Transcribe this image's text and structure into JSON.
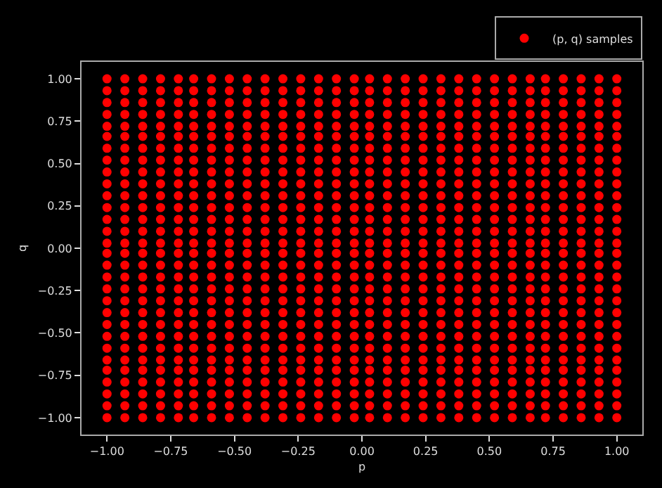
{
  "chart_data": {
    "type": "scatter",
    "xlabel": "p",
    "ylabel": "q",
    "xlim": [
      -1.1,
      1.1
    ],
    "ylim": [
      -1.1,
      1.1
    ],
    "xticks": [
      {
        "value": -1,
        "label": "−1.00"
      },
      {
        "value": -0.75,
        "label": "−0.75"
      },
      {
        "value": -0.5,
        "label": "−0.50"
      },
      {
        "value": -0.25,
        "label": "−0.25"
      },
      {
        "value": 0,
        "label": "0.00"
      },
      {
        "value": 0.25,
        "label": "0.25"
      },
      {
        "value": 0.5,
        "label": "0.50"
      },
      {
        "value": 0.75,
        "label": "0.75"
      },
      {
        "value": 1,
        "label": "1.00"
      }
    ],
    "yticks": [
      {
        "value": -1,
        "label": "−1.00"
      },
      {
        "value": -0.75,
        "label": "−0.75"
      },
      {
        "value": -0.5,
        "label": "−0.50"
      },
      {
        "value": -0.25,
        "label": "−0.25"
      },
      {
        "value": 0,
        "label": "0.00"
      },
      {
        "value": 0.25,
        "label": "0.25"
      },
      {
        "value": 0.5,
        "label": "0.50"
      },
      {
        "value": 0.75,
        "label": "0.75"
      },
      {
        "value": 1,
        "label": "1.00"
      }
    ],
    "grid": false,
    "legend": "top right",
    "marker": "circle",
    "series": [
      {
        "name": "(p, q) samples",
        "color": "#ff0000",
        "x": [
          -1,
          -1,
          -1,
          -1,
          -1,
          -1,
          -1,
          -1,
          -1,
          -1,
          -1,
          -1,
          -1,
          -1,
          -1,
          -1,
          -1,
          -1,
          -1,
          -1,
          -1,
          -1,
          -1,
          -1,
          -1,
          -1,
          -1,
          -1,
          -1,
          -1,
          -0.93,
          -0.93,
          -0.93,
          -0.93,
          -0.93,
          -0.93,
          -0.93,
          -0.93,
          -0.93,
          -0.93,
          -0.93,
          -0.93,
          -0.93,
          -0.93,
          -0.93,
          -0.93,
          -0.93,
          -0.93,
          -0.93,
          -0.93,
          -0.93,
          -0.93,
          -0.93,
          -0.93,
          -0.93,
          -0.93,
          -0.93,
          -0.93,
          -0.93,
          -0.93,
          -0.86,
          -0.86,
          -0.86,
          -0.86,
          -0.86,
          -0.86,
          -0.86,
          -0.86,
          -0.86,
          -0.86,
          -0.86,
          -0.86,
          -0.86,
          -0.86,
          -0.86,
          -0.86,
          -0.86,
          -0.86,
          -0.86,
          -0.86,
          -0.86,
          -0.86,
          -0.86,
          -0.86,
          -0.86,
          -0.86,
          -0.86,
          -0.86,
          -0.86,
          -0.86,
          -0.79,
          -0.79,
          -0.79,
          -0.79,
          -0.79,
          -0.79,
          -0.79,
          -0.79,
          -0.79,
          -0.79,
          -0.79,
          -0.79,
          -0.79,
          -0.79,
          -0.79,
          -0.79,
          -0.79,
          -0.79,
          -0.79,
          -0.79,
          -0.79,
          -0.79,
          -0.79,
          -0.79,
          -0.79,
          -0.79,
          -0.79,
          -0.79,
          -0.79,
          -0.79,
          -0.72,
          -0.72,
          -0.72,
          -0.72,
          -0.72,
          -0.72,
          -0.72,
          -0.72,
          -0.72,
          -0.72,
          -0.72,
          -0.72,
          -0.72,
          -0.72,
          -0.72,
          -0.72,
          -0.72,
          -0.72,
          -0.72,
          -0.72,
          -0.72,
          -0.72,
          -0.72,
          -0.72,
          -0.72,
          -0.72,
          -0.72,
          -0.72,
          -0.72,
          -0.72,
          -0.66,
          -0.66,
          -0.66,
          -0.66,
          -0.66,
          -0.66,
          -0.66,
          -0.66,
          -0.66,
          -0.66,
          -0.66,
          -0.66,
          -0.66,
          -0.66,
          -0.66,
          -0.66,
          -0.66,
          -0.66,
          -0.66,
          -0.66,
          -0.66,
          -0.66,
          -0.66,
          -0.66,
          -0.66,
          -0.66,
          -0.66,
          -0.66,
          -0.66,
          -0.66,
          -0.59,
          -0.59,
          -0.59,
          -0.59,
          -0.59,
          -0.59,
          -0.59,
          -0.59,
          -0.59,
          -0.59,
          -0.59,
          -0.59,
          -0.59,
          -0.59,
          -0.59,
          -0.59,
          -0.59,
          -0.59,
          -0.59,
          -0.59,
          -0.59,
          -0.59,
          -0.59,
          -0.59,
          -0.59,
          -0.59,
          -0.59,
          -0.59,
          -0.59,
          -0.59,
          -0.52,
          -0.52,
          -0.52,
          -0.52,
          -0.52,
          -0.52,
          -0.52,
          -0.52,
          -0.52,
          -0.52,
          -0.52,
          -0.52,
          -0.52,
          -0.52,
          -0.52,
          -0.52,
          -0.52,
          -0.52,
          -0.52,
          -0.52,
          -0.52,
          -0.52,
          -0.52,
          -0.52,
          -0.52,
          -0.52,
          -0.52,
          -0.52,
          -0.52,
          -0.52,
          -0.45,
          -0.45,
          -0.45,
          -0.45,
          -0.45,
          -0.45,
          -0.45,
          -0.45,
          -0.45,
          -0.45,
          -0.45,
          -0.45,
          -0.45,
          -0.45,
          -0.45,
          -0.45,
          -0.45,
          -0.45,
          -0.45,
          -0.45,
          -0.45,
          -0.45,
          -0.45,
          -0.45,
          -0.45,
          -0.45,
          -0.45,
          -0.45,
          -0.45,
          -0.45,
          -0.38,
          -0.38,
          -0.38,
          -0.38,
          -0.38,
          -0.38,
          -0.38,
          -0.38,
          -0.38,
          -0.38,
          -0.38,
          -0.38,
          -0.38,
          -0.38,
          -0.38,
          -0.38,
          -0.38,
          -0.38,
          -0.38,
          -0.38,
          -0.38,
          -0.38,
          -0.38,
          -0.38,
          -0.38,
          -0.38,
          -0.38,
          -0.38,
          -0.38,
          -0.38,
          -0.31,
          -0.31,
          -0.31,
          -0.31,
          -0.31,
          -0.31,
          -0.31,
          -0.31,
          -0.31,
          -0.31,
          -0.31,
          -0.31,
          -0.31,
          -0.31,
          -0.31,
          -0.31,
          -0.31,
          -0.31,
          -0.31,
          -0.31,
          -0.31,
          -0.31,
          -0.31,
          -0.31,
          -0.31,
          -0.31,
          -0.31,
          -0.31,
          -0.31,
          -0.31,
          -0.24,
          -0.24,
          -0.24,
          -0.24,
          -0.24,
          -0.24,
          -0.24,
          -0.24,
          -0.24,
          -0.24,
          -0.24,
          -0.24,
          -0.24,
          -0.24,
          -0.24,
          -0.24,
          -0.24,
          -0.24,
          -0.24,
          -0.24,
          -0.24,
          -0.24,
          -0.24,
          -0.24,
          -0.24,
          -0.24,
          -0.24,
          -0.24,
          -0.24,
          -0.24,
          -0.17,
          -0.17,
          -0.17,
          -0.17,
          -0.17,
          -0.17,
          -0.17,
          -0.17,
          -0.17,
          -0.17,
          -0.17,
          -0.17,
          -0.17,
          -0.17,
          -0.17,
          -0.17,
          -0.17,
          -0.17,
          -0.17,
          -0.17,
          -0.17,
          -0.17,
          -0.17,
          -0.17,
          -0.17,
          -0.17,
          -0.17,
          -0.17,
          -0.17,
          -0.17,
          -0.1,
          -0.1,
          -0.1,
          -0.1,
          -0.1,
          -0.1,
          -0.1,
          -0.1,
          -0.1,
          -0.1,
          -0.1,
          -0.1,
          -0.1,
          -0.1,
          -0.1,
          -0.1,
          -0.1,
          -0.1,
          -0.1,
          -0.1,
          -0.1,
          -0.1,
          -0.1,
          -0.1,
          -0.1,
          -0.1,
          -0.1,
          -0.1,
          -0.1,
          -0.1,
          -0.03,
          -0.03,
          -0.03,
          -0.03,
          -0.03,
          -0.03,
          -0.03,
          -0.03,
          -0.03,
          -0.03,
          -0.03,
          -0.03,
          -0.03,
          -0.03,
          -0.03,
          -0.03,
          -0.03,
          -0.03,
          -0.03,
          -0.03,
          -0.03,
          -0.03,
          -0.03,
          -0.03,
          -0.03,
          -0.03,
          -0.03,
          -0.03,
          -0.03,
          -0.03,
          0.03,
          0.03,
          0.03,
          0.03,
          0.03,
          0.03,
          0.03,
          0.03,
          0.03,
          0.03,
          0.03,
          0.03,
          0.03,
          0.03,
          0.03,
          0.03,
          0.03,
          0.03,
          0.03,
          0.03,
          0.03,
          0.03,
          0.03,
          0.03,
          0.03,
          0.03,
          0.03,
          0.03,
          0.03,
          0.03,
          0.1,
          0.1,
          0.1,
          0.1,
          0.1,
          0.1,
          0.1,
          0.1,
          0.1,
          0.1,
          0.1,
          0.1,
          0.1,
          0.1,
          0.1,
          0.1,
          0.1,
          0.1,
          0.1,
          0.1,
          0.1,
          0.1,
          0.1,
          0.1,
          0.1,
          0.1,
          0.1,
          0.1,
          0.1,
          0.1,
          0.17,
          0.17,
          0.17,
          0.17,
          0.17,
          0.17,
          0.17,
          0.17,
          0.17,
          0.17,
          0.17,
          0.17,
          0.17,
          0.17,
          0.17,
          0.17,
          0.17,
          0.17,
          0.17,
          0.17,
          0.17,
          0.17,
          0.17,
          0.17,
          0.17,
          0.17,
          0.17,
          0.17,
          0.17,
          0.17,
          0.24,
          0.24,
          0.24,
          0.24,
          0.24,
          0.24,
          0.24,
          0.24,
          0.24,
          0.24,
          0.24,
          0.24,
          0.24,
          0.24,
          0.24,
          0.24,
          0.24,
          0.24,
          0.24,
          0.24,
          0.24,
          0.24,
          0.24,
          0.24,
          0.24,
          0.24,
          0.24,
          0.24,
          0.24,
          0.24,
          0.31,
          0.31,
          0.31,
          0.31,
          0.31,
          0.31,
          0.31,
          0.31,
          0.31,
          0.31,
          0.31,
          0.31,
          0.31,
          0.31,
          0.31,
          0.31,
          0.31,
          0.31,
          0.31,
          0.31,
          0.31,
          0.31,
          0.31,
          0.31,
          0.31,
          0.31,
          0.31,
          0.31,
          0.31,
          0.31,
          0.38,
          0.38,
          0.38,
          0.38,
          0.38,
          0.38,
          0.38,
          0.38,
          0.38,
          0.38,
          0.38,
          0.38,
          0.38,
          0.38,
          0.38,
          0.38,
          0.38,
          0.38,
          0.38,
          0.38,
          0.38,
          0.38,
          0.38,
          0.38,
          0.38,
          0.38,
          0.38,
          0.38,
          0.38,
          0.38,
          0.45,
          0.45,
          0.45,
          0.45,
          0.45,
          0.45,
          0.45,
          0.45,
          0.45,
          0.45,
          0.45,
          0.45,
          0.45,
          0.45,
          0.45,
          0.45,
          0.45,
          0.45,
          0.45,
          0.45,
          0.45,
          0.45,
          0.45,
          0.45,
          0.45,
          0.45,
          0.45,
          0.45,
          0.45,
          0.45,
          0.52,
          0.52,
          0.52,
          0.52,
          0.52,
          0.52,
          0.52,
          0.52,
          0.52,
          0.52,
          0.52,
          0.52,
          0.52,
          0.52,
          0.52,
          0.52,
          0.52,
          0.52,
          0.52,
          0.52,
          0.52,
          0.52,
          0.52,
          0.52,
          0.52,
          0.52,
          0.52,
          0.52,
          0.52,
          0.52,
          0.59,
          0.59,
          0.59,
          0.59,
          0.59,
          0.59,
          0.59,
          0.59,
          0.59,
          0.59,
          0.59,
          0.59,
          0.59,
          0.59,
          0.59,
          0.59,
          0.59,
          0.59,
          0.59,
          0.59,
          0.59,
          0.59,
          0.59,
          0.59,
          0.59,
          0.59,
          0.59,
          0.59,
          0.59,
          0.59,
          0.66,
          0.66,
          0.66,
          0.66,
          0.66,
          0.66,
          0.66,
          0.66,
          0.66,
          0.66,
          0.66,
          0.66,
          0.66,
          0.66,
          0.66,
          0.66,
          0.66,
          0.66,
          0.66,
          0.66,
          0.66,
          0.66,
          0.66,
          0.66,
          0.66,
          0.66,
          0.66,
          0.66,
          0.66,
          0.66,
          0.72,
          0.72,
          0.72,
          0.72,
          0.72,
          0.72,
          0.72,
          0.72,
          0.72,
          0.72,
          0.72,
          0.72,
          0.72,
          0.72,
          0.72,
          0.72,
          0.72,
          0.72,
          0.72,
          0.72,
          0.72,
          0.72,
          0.72,
          0.72,
          0.72,
          0.72,
          0.72,
          0.72,
          0.72,
          0.72,
          0.79,
          0.79,
          0.79,
          0.79,
          0.79,
          0.79,
          0.79,
          0.79,
          0.79,
          0.79,
          0.79,
          0.79,
          0.79,
          0.79,
          0.79,
          0.79,
          0.79,
          0.79,
          0.79,
          0.79,
          0.79,
          0.79,
          0.79,
          0.79,
          0.79,
          0.79,
          0.79,
          0.79,
          0.79,
          0.79,
          0.86,
          0.86,
          0.86,
          0.86,
          0.86,
          0.86,
          0.86,
          0.86,
          0.86,
          0.86,
          0.86,
          0.86,
          0.86,
          0.86,
          0.86,
          0.86,
          0.86,
          0.86,
          0.86,
          0.86,
          0.86,
          0.86,
          0.86,
          0.86,
          0.86,
          0.86,
          0.86,
          0.86,
          0.86,
          0.86,
          0.93,
          0.93,
          0.93,
          0.93,
          0.93,
          0.93,
          0.93,
          0.93,
          0.93,
          0.93,
          0.93,
          0.93,
          0.93,
          0.93,
          0.93,
          0.93,
          0.93,
          0.93,
          0.93,
          0.93,
          0.93,
          0.93,
          0.93,
          0.93,
          0.93,
          0.93,
          0.93,
          0.93,
          0.93,
          0.93,
          1,
          1,
          1,
          1,
          1,
          1,
          1,
          1,
          1,
          1,
          1,
          1,
          1,
          1,
          1,
          1,
          1,
          1,
          1,
          1,
          1,
          1,
          1,
          1,
          1,
          1,
          1,
          1,
          1,
          1
        ],
        "values": [
          -1,
          -0.93,
          -0.86,
          -0.79,
          -0.72,
          -0.66,
          -0.59,
          -0.52,
          -0.45,
          -0.38,
          -0.31,
          -0.24,
          -0.17,
          -0.1,
          -0.03,
          0.03,
          0.1,
          0.17,
          0.24,
          0.31,
          0.38,
          0.45,
          0.52,
          0.59,
          0.66,
          0.72,
          0.79,
          0.86,
          0.93,
          1,
          -1,
          -0.93,
          -0.86,
          -0.79,
          -0.72,
          -0.66,
          -0.59,
          -0.52,
          -0.45,
          -0.38,
          -0.31,
          -0.24,
          -0.17,
          -0.1,
          -0.03,
          0.03,
          0.1,
          0.17,
          0.24,
          0.31,
          0.38,
          0.45,
          0.52,
          0.59,
          0.66,
          0.72,
          0.79,
          0.86,
          0.93,
          1,
          -1,
          -0.93,
          -0.86,
          -0.79,
          -0.72,
          -0.66,
          -0.59,
          -0.52,
          -0.45,
          -0.38,
          -0.31,
          -0.24,
          -0.17,
          -0.1,
          -0.03,
          0.03,
          0.1,
          0.17,
          0.24,
          0.31,
          0.38,
          0.45,
          0.52,
          0.59,
          0.66,
          0.72,
          0.79,
          0.86,
          0.93,
          1,
          -1,
          -0.93,
          -0.86,
          -0.79,
          -0.72,
          -0.66,
          -0.59,
          -0.52,
          -0.45,
          -0.38,
          -0.31,
          -0.24,
          -0.17,
          -0.1,
          -0.03,
          0.03,
          0.1,
          0.17,
          0.24,
          0.31,
          0.38,
          0.45,
          0.52,
          0.59,
          0.66,
          0.72,
          0.79,
          0.86,
          0.93,
          1,
          -1,
          -0.93,
          -0.86,
          -0.79,
          -0.72,
          -0.66,
          -0.59,
          -0.52,
          -0.45,
          -0.38,
          -0.31,
          -0.24,
          -0.17,
          -0.1,
          -0.03,
          0.03,
          0.1,
          0.17,
          0.24,
          0.31,
          0.38,
          0.45,
          0.52,
          0.59,
          0.66,
          0.72,
          0.79,
          0.86,
          0.93,
          1,
          -1,
          -0.93,
          -0.86,
          -0.79,
          -0.72,
          -0.66,
          -0.59,
          -0.52,
          -0.45,
          -0.38,
          -0.31,
          -0.24,
          -0.17,
          -0.1,
          -0.03,
          0.03,
          0.1,
          0.17,
          0.24,
          0.31,
          0.38,
          0.45,
          0.52,
          0.59,
          0.66,
          0.72,
          0.79,
          0.86,
          0.93,
          1,
          -1,
          -0.93,
          -0.86,
          -0.79,
          -0.72,
          -0.66,
          -0.59,
          -0.52,
          -0.45,
          -0.38,
          -0.31,
          -0.24,
          -0.17,
          -0.1,
          -0.03,
          0.03,
          0.1,
          0.17,
          0.24,
          0.31,
          0.38,
          0.45,
          0.52,
          0.59,
          0.66,
          0.72,
          0.79,
          0.86,
          0.93,
          1,
          -1,
          -0.93,
          -0.86,
          -0.79,
          -0.72,
          -0.66,
          -0.59,
          -0.52,
          -0.45,
          -0.38,
          -0.31,
          -0.24,
          -0.17,
          -0.1,
          -0.03,
          0.03,
          0.1,
          0.17,
          0.24,
          0.31,
          0.38,
          0.45,
          0.52,
          0.59,
          0.66,
          0.72,
          0.79,
          0.86,
          0.93,
          1,
          -1,
          -0.93,
          -0.86,
          -0.79,
          -0.72,
          -0.66,
          -0.59,
          -0.52,
          -0.45,
          -0.38,
          -0.31,
          -0.24,
          -0.17,
          -0.1,
          -0.03,
          0.03,
          0.1,
          0.17,
          0.24,
          0.31,
          0.38,
          0.45,
          0.52,
          0.59,
          0.66,
          0.72,
          0.79,
          0.86,
          0.93,
          1,
          -1,
          -0.93,
          -0.86,
          -0.79,
          -0.72,
          -0.66,
          -0.59,
          -0.52,
          -0.45,
          -0.38,
          -0.31,
          -0.24,
          -0.17,
          -0.1,
          -0.03,
          0.03,
          0.1,
          0.17,
          0.24,
          0.31,
          0.38,
          0.45,
          0.52,
          0.59,
          0.66,
          0.72,
          0.79,
          0.86,
          0.93,
          1,
          -1,
          -0.93,
          -0.86,
          -0.79,
          -0.72,
          -0.66,
          -0.59,
          -0.52,
          -0.45,
          -0.38,
          -0.31,
          -0.24,
          -0.17,
          -0.1,
          -0.03,
          0.03,
          0.1,
          0.17,
          0.24,
          0.31,
          0.38,
          0.45,
          0.52,
          0.59,
          0.66,
          0.72,
          0.79,
          0.86,
          0.93,
          1,
          -1,
          -0.93,
          -0.86,
          -0.79,
          -0.72,
          -0.66,
          -0.59,
          -0.52,
          -0.45,
          -0.38,
          -0.31,
          -0.24,
          -0.17,
          -0.1,
          -0.03,
          0.03,
          0.1,
          0.17,
          0.24,
          0.31,
          0.38,
          0.45,
          0.52,
          0.59,
          0.66,
          0.72,
          0.79,
          0.86,
          0.93,
          1,
          -1,
          -0.93,
          -0.86,
          -0.79,
          -0.72,
          -0.66,
          -0.59,
          -0.52,
          -0.45,
          -0.38,
          -0.31,
          -0.24,
          -0.17,
          -0.1,
          -0.03,
          0.03,
          0.1,
          0.17,
          0.24,
          0.31,
          0.38,
          0.45,
          0.52,
          0.59,
          0.66,
          0.72,
          0.79,
          0.86,
          0.93,
          1,
          -1,
          -0.93,
          -0.86,
          -0.79,
          -0.72,
          -0.66,
          -0.59,
          -0.52,
          -0.45,
          -0.38,
          -0.31,
          -0.24,
          -0.17,
          -0.1,
          -0.03,
          0.03,
          0.1,
          0.17,
          0.24,
          0.31,
          0.38,
          0.45,
          0.52,
          0.59,
          0.66,
          0.72,
          0.79,
          0.86,
          0.93,
          1,
          -1,
          -0.93,
          -0.86,
          -0.79,
          -0.72,
          -0.66,
          -0.59,
          -0.52,
          -0.45,
          -0.38,
          -0.31,
          -0.24,
          -0.17,
          -0.1,
          -0.03,
          0.03,
          0.1,
          0.17,
          0.24,
          0.31,
          0.38,
          0.45,
          0.52,
          0.59,
          0.66,
          0.72,
          0.79,
          0.86,
          0.93,
          1,
          -1,
          -0.93,
          -0.86,
          -0.79,
          -0.72,
          -0.66,
          -0.59,
          -0.52,
          -0.45,
          -0.38,
          -0.31,
          -0.24,
          -0.17,
          -0.1,
          -0.03,
          0.03,
          0.1,
          0.17,
          0.24,
          0.31,
          0.38,
          0.45,
          0.52,
          0.59,
          0.66,
          0.72,
          0.79,
          0.86,
          0.93,
          1,
          -1,
          -0.93,
          -0.86,
          -0.79,
          -0.72,
          -0.66,
          -0.59,
          -0.52,
          -0.45,
          -0.38,
          -0.31,
          -0.24,
          -0.17,
          -0.1,
          -0.03,
          0.03,
          0.1,
          0.17,
          0.24,
          0.31,
          0.38,
          0.45,
          0.52,
          0.59,
          0.66,
          0.72,
          0.79,
          0.86,
          0.93,
          1,
          -1,
          -0.93,
          -0.86,
          -0.79,
          -0.72,
          -0.66,
          -0.59,
          -0.52,
          -0.45,
          -0.38,
          -0.31,
          -0.24,
          -0.17,
          -0.1,
          -0.03,
          0.03,
          0.1,
          0.17,
          0.24,
          0.31,
          0.38,
          0.45,
          0.52,
          0.59,
          0.66,
          0.72,
          0.79,
          0.86,
          0.93,
          1,
          -1,
          -0.93,
          -0.86,
          -0.79,
          -0.72,
          -0.66,
          -0.59,
          -0.52,
          -0.45,
          -0.38,
          -0.31,
          -0.24,
          -0.17,
          -0.1,
          -0.03,
          0.03,
          0.1,
          0.17,
          0.24,
          0.31,
          0.38,
          0.45,
          0.52,
          0.59,
          0.66,
          0.72,
          0.79,
          0.86,
          0.93,
          1,
          -1,
          -0.93,
          -0.86,
          -0.79,
          -0.72,
          -0.66,
          -0.59,
          -0.52,
          -0.45,
          -0.38,
          -0.31,
          -0.24,
          -0.17,
          -0.1,
          -0.03,
          0.03,
          0.1,
          0.17,
          0.24,
          0.31,
          0.38,
          0.45,
          0.52,
          0.59,
          0.66,
          0.72,
          0.79,
          0.86,
          0.93,
          1,
          -1,
          -0.93,
          -0.86,
          -0.79,
          -0.72,
          -0.66,
          -0.59,
          -0.52,
          -0.45,
          -0.38,
          -0.31,
          -0.24,
          -0.17,
          -0.1,
          -0.03,
          0.03,
          0.1,
          0.17,
          0.24,
          0.31,
          0.38,
          0.45,
          0.52,
          0.59,
          0.66,
          0.72,
          0.79,
          0.86,
          0.93,
          1,
          -1,
          -0.93,
          -0.86,
          -0.79,
          -0.72,
          -0.66,
          -0.59,
          -0.52,
          -0.45,
          -0.38,
          -0.31,
          -0.24,
          -0.17,
          -0.1,
          -0.03,
          0.03,
          0.1,
          0.17,
          0.24,
          0.31,
          0.38,
          0.45,
          0.52,
          0.59,
          0.66,
          0.72,
          0.79,
          0.86,
          0.93,
          1,
          -1,
          -0.93,
          -0.86,
          -0.79,
          -0.72,
          -0.66,
          -0.59,
          -0.52,
          -0.45,
          -0.38,
          -0.31,
          -0.24,
          -0.17,
          -0.1,
          -0.03,
          0.03,
          0.1,
          0.17,
          0.24,
          0.31,
          0.38,
          0.45,
          0.52,
          0.59,
          0.66,
          0.72,
          0.79,
          0.86,
          0.93,
          1,
          -1,
          -0.93,
          -0.86,
          -0.79,
          -0.72,
          -0.66,
          -0.59,
          -0.52,
          -0.45,
          -0.38,
          -0.31,
          -0.24,
          -0.17,
          -0.1,
          -0.03,
          0.03,
          0.1,
          0.17,
          0.24,
          0.31,
          0.38,
          0.45,
          0.52,
          0.59,
          0.66,
          0.72,
          0.79,
          0.86,
          0.93,
          1,
          -1,
          -0.93,
          -0.86,
          -0.79,
          -0.72,
          -0.66,
          -0.59,
          -0.52,
          -0.45,
          -0.38,
          -0.31,
          -0.24,
          -0.17,
          -0.1,
          -0.03,
          0.03,
          0.1,
          0.17,
          0.24,
          0.31,
          0.38,
          0.45,
          0.52,
          0.59,
          0.66,
          0.72,
          0.79,
          0.86,
          0.93,
          1,
          -1,
          -0.93,
          -0.86,
          -0.79,
          -0.72,
          -0.66,
          -0.59,
          -0.52,
          -0.45,
          -0.38,
          -0.31,
          -0.24,
          -0.17,
          -0.1,
          -0.03,
          0.03,
          0.1,
          0.17,
          0.24,
          0.31,
          0.38,
          0.45,
          0.52,
          0.59,
          0.66,
          0.72,
          0.79,
          0.86,
          0.93,
          1,
          -1,
          -0.93,
          -0.86,
          -0.79,
          -0.72,
          -0.66,
          -0.59,
          -0.52,
          -0.45,
          -0.38,
          -0.31,
          -0.24,
          -0.17,
          -0.1,
          -0.03,
          0.03,
          0.1,
          0.17,
          0.24,
          0.31,
          0.38,
          0.45,
          0.52,
          0.59,
          0.66,
          0.72,
          0.79,
          0.86,
          0.93,
          1,
          -1,
          -0.93,
          -0.86,
          -0.79,
          -0.72,
          -0.66,
          -0.59,
          -0.52,
          -0.45,
          -0.38,
          -0.31,
          -0.24,
          -0.17,
          -0.1,
          -0.03,
          0.03,
          0.1,
          0.17,
          0.24,
          0.31,
          0.38,
          0.45,
          0.52,
          0.59,
          0.66,
          0.72,
          0.79,
          0.86,
          0.93,
          1,
          -1,
          -0.93,
          -0.86,
          -0.79,
          -0.72,
          -0.66,
          -0.59,
          -0.52,
          -0.45,
          -0.38,
          -0.31,
          -0.24,
          -0.17,
          -0.1,
          -0.03,
          0.03,
          0.1,
          0.17,
          0.24,
          0.31,
          0.38,
          0.45,
          0.52,
          0.59,
          0.66,
          0.72,
          0.79,
          0.86,
          0.93,
          1,
          -1,
          -0.93,
          -0.86,
          -0.79,
          -0.72,
          -0.66,
          -0.59,
          -0.52,
          -0.45,
          -0.38,
          -0.31,
          -0.24,
          -0.17,
          -0.1,
          -0.03,
          0.03,
          0.1,
          0.17,
          0.24,
          0.31,
          0.38,
          0.45,
          0.52,
          0.59,
          0.66,
          0.72,
          0.79,
          0.86,
          0.93,
          1
        ]
      }
    ]
  }
}
